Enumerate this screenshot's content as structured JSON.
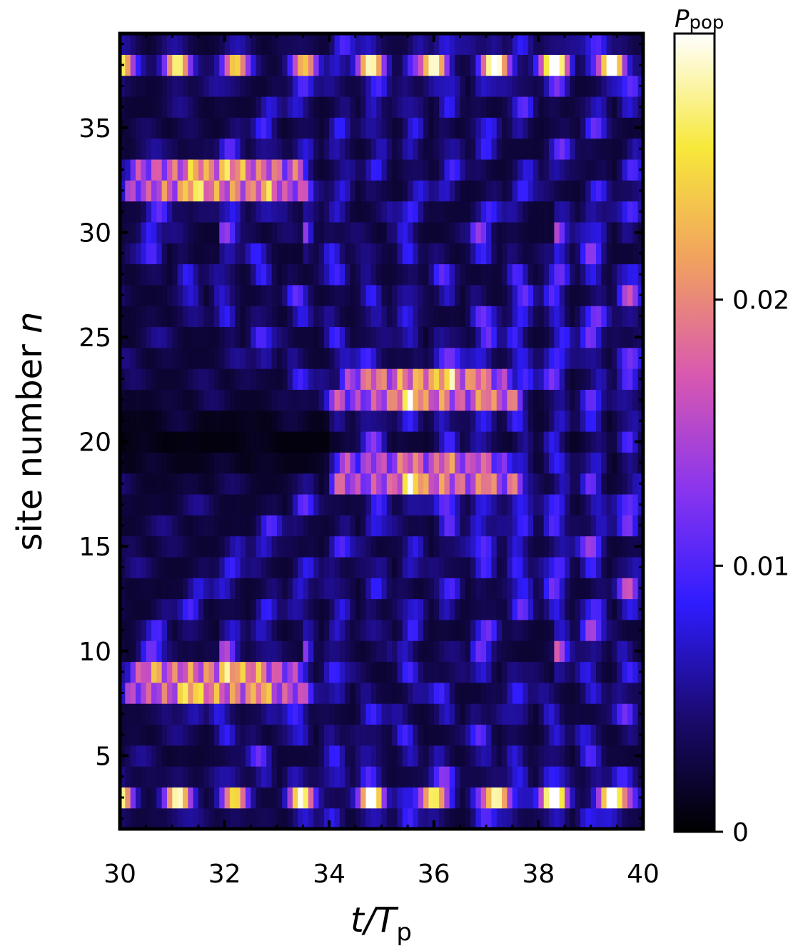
{
  "chart_data": {
    "type": "heatmap",
    "title": "",
    "xlabel": {
      "main": "t/T",
      "sub": "p"
    },
    "ylabel": {
      "main": "site number ",
      "italic": "n"
    },
    "xlim": [
      30,
      40
    ],
    "ylim": [
      1.5,
      39.5
    ],
    "x_ticks": [
      30,
      32,
      34,
      36,
      38,
      40
    ],
    "x_tick_labels": [
      "30",
      "32",
      "34",
      "36",
      "38",
      "40"
    ],
    "y_ticks": [
      5,
      10,
      15,
      20,
      25,
      30,
      35
    ],
    "y_tick_labels": [
      "5",
      "10",
      "15",
      "20",
      "25",
      "30",
      "35"
    ],
    "colorbar": {
      "label": {
        "main": "P",
        "sub": "pop"
      },
      "range": [
        0,
        0.03
      ],
      "ticks": [
        0,
        0.01,
        0.02
      ],
      "tick_labels": [
        "0",
        "0.01",
        "0.02"
      ],
      "colormap": "gnuplot2",
      "colors": [
        "#000000",
        "#1a0a6e",
        "#2f1cff",
        "#8a35ee",
        "#d858b0",
        "#f1a060",
        "#f7e83a",
        "#ffffff"
      ]
    },
    "grid": false,
    "features": {
      "edge_bright_sites": [
        3,
        38
      ],
      "edge_peak_times": [
        30.0,
        31.1,
        32.2,
        33.5,
        34.8,
        36.0,
        37.2,
        38.3,
        39.4
      ],
      "edge_peak_values": [
        0.024,
        0.026,
        0.022,
        0.019,
        0.026,
        0.025,
        0.027,
        0.029,
        0.03
      ],
      "wavepacket_bands": [
        {
          "sites": [
            8,
            9
          ],
          "t_start": 30.2,
          "t_end": 33.5,
          "peak": 0.02
        },
        {
          "sites": [
            32,
            33
          ],
          "t_start": 30.2,
          "t_end": 33.5,
          "peak": 0.02
        },
        {
          "sites": [
            18,
            19
          ],
          "t_start": 34.2,
          "t_end": 37.5,
          "peak": 0.019
        },
        {
          "sites": [
            22,
            23
          ],
          "t_start": 34.2,
          "t_end": 37.5,
          "peak": 0.019
        }
      ],
      "dark_band_site": 20
    }
  }
}
